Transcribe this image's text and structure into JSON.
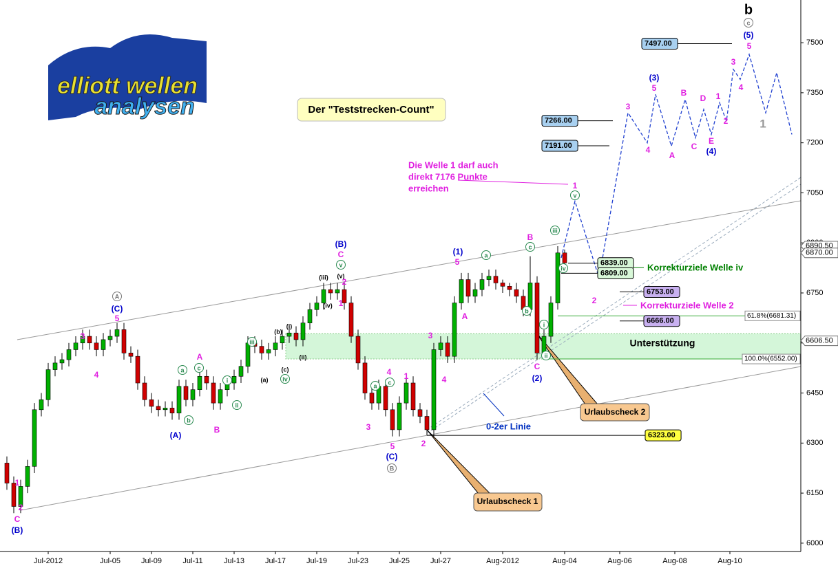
{
  "chart_data": {
    "type": "candlestick",
    "title": "Der \"Teststrecken-Count\"",
    "logo": [
      "elliott wellen",
      "analysen"
    ],
    "xlim": [
      0,
      116.3
    ],
    "ylim": [
      5975,
      7628
    ],
    "yticks": [
      6000,
      6150,
      6300,
      6450,
      6600,
      6750,
      6900,
      7050,
      7200,
      7350,
      7500
    ],
    "xticks": [
      {
        "value": 7,
        "label": "Jul-2012"
      },
      {
        "value": 16,
        "label": "Jul-05"
      },
      {
        "value": 22,
        "label": "Jul-09"
      },
      {
        "value": 28,
        "label": "Jul-11"
      },
      {
        "value": 34,
        "label": "Jul-13"
      },
      {
        "value": 40,
        "label": "Jul-17"
      },
      {
        "value": 46,
        "label": "Jul-19"
      },
      {
        "value": 52,
        "label": "Jul-23"
      },
      {
        "value": 58,
        "label": "Jul-25"
      },
      {
        "value": 64,
        "label": "Jul-27"
      },
      {
        "value": 73,
        "label": "Aug-2012"
      },
      {
        "value": 82,
        "label": "Aug-04"
      },
      {
        "value": 90,
        "label": "Aug-06"
      },
      {
        "value": 98,
        "label": "Aug-08"
      },
      {
        "value": 106,
        "label": "Aug-10"
      }
    ],
    "up_color": "#00b000",
    "down_color": "#d00000",
    "candles": {
      "x": [
        1,
        2,
        3,
        4,
        5,
        6,
        7,
        8,
        9,
        10,
        11,
        12,
        13,
        14,
        15,
        16,
        17,
        18,
        19,
        20,
        21,
        22,
        23,
        24,
        25,
        26,
        27,
        28,
        29,
        30,
        31,
        32,
        33,
        34,
        35,
        36,
        37,
        38,
        39,
        40,
        41,
        42,
        43,
        44,
        45,
        46,
        47,
        48,
        49,
        50,
        51,
        52,
        53,
        54,
        55,
        56,
        57,
        58,
        59,
        60,
        61,
        62,
        63,
        64,
        65,
        66,
        67,
        68,
        69,
        70,
        71,
        72,
        73,
        74,
        75,
        76,
        77,
        78,
        79,
        80,
        81,
        82
      ],
      "open": [
        6240,
        6180,
        6110,
        6170,
        6230,
        6400,
        6430,
        6520,
        6540,
        6550,
        6580,
        6600,
        6620,
        6600,
        6580,
        6610,
        6620,
        6640,
        6570,
        6560,
        6480,
        6430,
        6410,
        6400,
        6405,
        6390,
        6470,
        6430,
        6460,
        6500,
        6480,
        6420,
        6460,
        6480,
        6500,
        6530,
        6600,
        6590,
        6570,
        6580,
        6600,
        6620,
        6630,
        6610,
        6660,
        6700,
        6720,
        6760,
        6750,
        6760,
        6720,
        6620,
        6540,
        6450,
        6420,
        6470,
        6400,
        6340,
        6420,
        6480,
        6400,
        6380,
        6340,
        6580,
        6600,
        6560,
        6720,
        6790,
        6740,
        6760,
        6790,
        6800,
        6780,
        6770,
        6760,
        6740,
        6700,
        6780,
        6570,
        6620,
        6720,
        6870
      ],
      "high": [
        6260,
        6200,
        6190,
        6250,
        6420,
        6450,
        6540,
        6560,
        6570,
        6600,
        6620,
        6640,
        6640,
        6620,
        6630,
        6640,
        6660,
        6660,
        6590,
        6580,
        6500,
        6450,
        6430,
        6425,
        6425,
        6490,
        6490,
        6480,
        6520,
        6520,
        6500,
        6480,
        6500,
        6520,
        6550,
        6620,
        6620,
        6610,
        6600,
        6620,
        6640,
        6650,
        6650,
        6680,
        6720,
        6740,
        6780,
        6780,
        6780,
        6780,
        6740,
        6640,
        6560,
        6470,
        6490,
        6490,
        6420,
        6440,
        6500,
        6500,
        6420,
        6400,
        6600,
        6620,
        6620,
        6740,
        6810,
        6810,
        6780,
        6810,
        6820,
        6820,
        6790,
        6780,
        6780,
        6760,
        6860,
        6800,
        6640,
        6740,
        6890,
        6880
      ],
      "low": [
        6160,
        6090,
        6090,
        6150,
        6210,
        6380,
        6410,
        6500,
        6520,
        6530,
        6560,
        6580,
        6580,
        6560,
        6560,
        6590,
        6600,
        6550,
        6540,
        6460,
        6410,
        6390,
        6380,
        6380,
        6370,
        6370,
        6410,
        6410,
        6440,
        6460,
        6400,
        6400,
        6440,
        6460,
        6480,
        6510,
        6570,
        6550,
        6550,
        6560,
        6580,
        6600,
        6590,
        6590,
        6640,
        6680,
        6700,
        6730,
        6730,
        6700,
        6600,
        6520,
        6430,
        6400,
        6400,
        6380,
        6320,
        6320,
        6400,
        6380,
        6360,
        6323,
        6320,
        6560,
        6540,
        6540,
        6700,
        6720,
        6720,
        6740,
        6770,
        6760,
        6750,
        6740,
        6720,
        6680,
        6680,
        6550,
        6550,
        6600,
        6700,
        6820
      ],
      "close": [
        6180,
        6110,
        6170,
        6230,
        6400,
        6430,
        6520,
        6540,
        6550,
        6580,
        6600,
        6620,
        6600,
        6580,
        6610,
        6620,
        6640,
        6570,
        6560,
        6480,
        6430,
        6410,
        6400,
        6405,
        6390,
        6470,
        6430,
        6460,
        6500,
        6480,
        6420,
        6460,
        6480,
        6500,
        6530,
        6600,
        6590,
        6570,
        6580,
        6600,
        6620,
        6630,
        6610,
        6660,
        6700,
        6720,
        6760,
        6750,
        6760,
        6720,
        6620,
        6540,
        6450,
        6420,
        6470,
        6400,
        6340,
        6420,
        6480,
        6400,
        6380,
        6340,
        6580,
        6600,
        6560,
        6720,
        6790,
        6740,
        6760,
        6790,
        6800,
        6780,
        6770,
        6760,
        6740,
        6700,
        6780,
        6570,
        6620,
        6720,
        6870,
        6840
      ]
    },
    "forecast": {
      "color": "#2040d0",
      "x": [
        81.5,
        83.5,
        87,
        91.2,
        94,
        95.2,
        97.5,
        99.5,
        101,
        102.2,
        103.3,
        104.5,
        105.5,
        106.5,
        107.5,
        108.8,
        111.2,
        112.8,
        115
      ],
      "values": [
        6855,
        7025,
        6795,
        7290,
        7200,
        7345,
        7190,
        7330,
        7215,
        7300,
        7225,
        7320,
        7265,
        7420,
        7390,
        7465,
        7290,
        7410,
        7225
      ]
    },
    "levels": [
      {
        "value": 7497,
        "label": "7497.00",
        "color": "#a8d0f0"
      },
      {
        "value": 7266,
        "label": "7266.00",
        "color": "#a8d0f0"
      },
      {
        "value": 7191,
        "label": "7191.00",
        "color": "#a8d0f0"
      },
      {
        "value": 6839,
        "label": "6839.00",
        "color": "#d8f8d8"
      },
      {
        "value": 6809,
        "label": "6809.00",
        "color": "#d8f8d8"
      },
      {
        "value": 6753,
        "label": "6753.00",
        "color": "#c8b0f0"
      },
      {
        "value": 6666,
        "label": "6666.00",
        "color": "#c8b0f0"
      },
      {
        "value": 6323,
        "label": "6323.00",
        "color": "#ffff40"
      }
    ],
    "fibs": [
      {
        "value": 6681.31,
        "label": "61.8%(6681.31)"
      },
      {
        "value": 6552,
        "label": "100.0%(6552.00)"
      }
    ],
    "price_tags": [
      {
        "value": 6890.5,
        "label": "6890.50"
      },
      {
        "value": 6870,
        "label": "6870.00"
      },
      {
        "value": 6606.5,
        "label": "6606.50"
      }
    ],
    "support_zone": {
      "label": "Unterstützung",
      "range": [
        6552,
        6628
      ],
      "color": "#b8f0c0"
    },
    "notes": {
      "welle1": [
        "Die Welle 1 darf auch",
        "direkt 7176 Punkte",
        "erreichen"
      ],
      "korr_iv": "Korrekturziele Welle iv",
      "korr_2": "Korrekturziele Welle 2",
      "linie": "0-2er Linie",
      "u1": "Urlaubscheck 1",
      "u2": "Urlaubscheck 2"
    },
    "wave_labels": [
      "C",
      "2",
      "1",
      "(B)",
      "3",
      "4",
      "5",
      "(C)",
      "A",
      "a",
      "b",
      "c",
      "A",
      "(A)",
      "B",
      "i",
      "ii",
      "iii",
      "iv",
      "(a)",
      "(b)",
      "(c)",
      "(i)",
      "(ii)",
      "(iii)",
      "(iv)",
      "(v)",
      "1",
      "2",
      "v",
      "C",
      "(B)",
      "3",
      "4",
      "a",
      "c",
      "5",
      "(C)",
      "B",
      "1",
      "2",
      "3",
      "4",
      "A",
      "5",
      "(1)",
      "a",
      "b",
      "B",
      "c",
      "iii",
      "iv",
      "i",
      "ii",
      "C",
      "(2)",
      "v",
      "1",
      "2",
      "3",
      "4",
      "5",
      "(3)",
      "A",
      "B",
      "C",
      "D",
      "E",
      "(4)",
      "1",
      "2",
      "3",
      "4",
      "5",
      "(5)",
      "c",
      "b",
      "1"
    ]
  }
}
